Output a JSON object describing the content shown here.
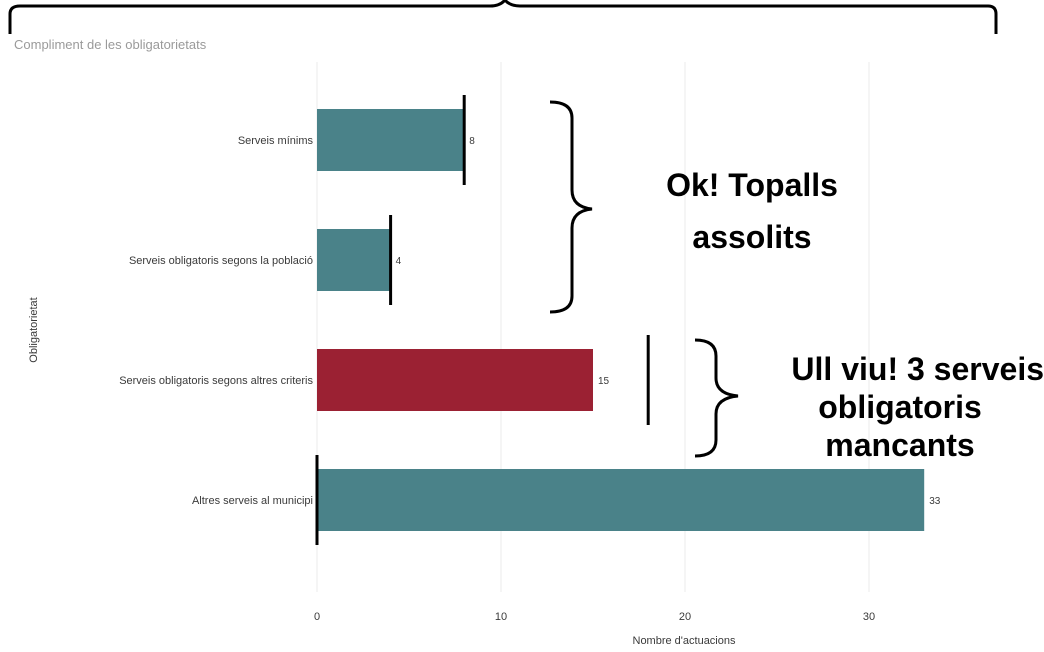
{
  "chart_data": {
    "type": "bar",
    "orientation": "horizontal",
    "title": "Compliment de les obligatorietats",
    "xlabel": "Nombre d'actuacions",
    "ylabel": "Obligatorietat",
    "xlim": [
      0,
      40
    ],
    "xticks": [
      0,
      10,
      20,
      30,
      40
    ],
    "grid": true,
    "categories": [
      "Serveis mínims",
      "Serveis obligatoris segons la població",
      "Serveis obligatoris segons altres criteris",
      "Altres serveis al municipi"
    ],
    "values": [
      8,
      4,
      15,
      33
    ],
    "value_labels": [
      "8",
      "4",
      "15",
      "33"
    ],
    "bar_colors": [
      "#4a8289",
      "#4a8289",
      "#9b2133",
      "#4a8289"
    ],
    "target_markers": [
      8,
      4,
      18,
      0
    ]
  },
  "annotations": {
    "ok": {
      "lines": [
        "Ok! Topalls",
        "assolits"
      ]
    },
    "warning": {
      "lines": [
        "Ull viu! 3 serveis",
        "obligatoris",
        "mancants"
      ]
    }
  },
  "colors": {
    "bar_default": "#4a8289",
    "bar_alert": "#9b2133",
    "marker": "#000000",
    "grid": "#ebebeb"
  }
}
